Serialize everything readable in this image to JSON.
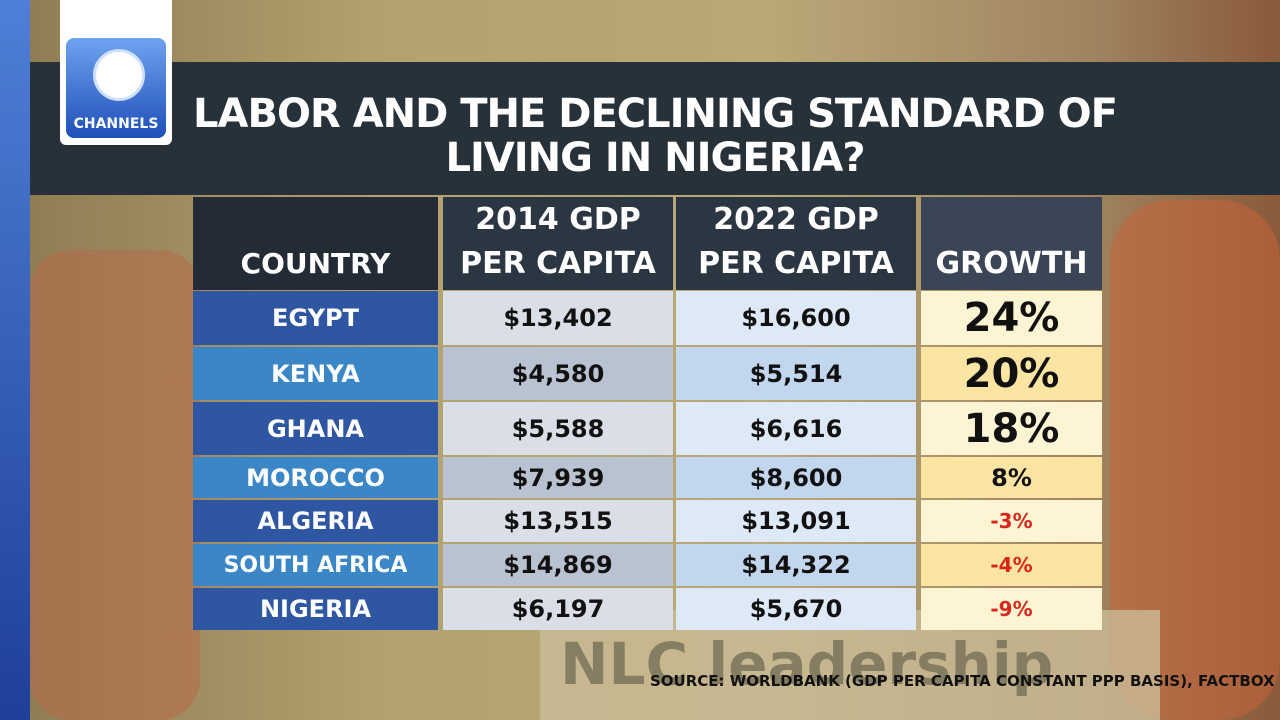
{
  "logo": "CHANNELS",
  "title": "LABOR AND THE DECLINING STANDARD OF LIVING IN NIGERIA?",
  "background_sign": "NLC leadership",
  "table": {
    "header": [
      "COUNTRY",
      "2014 GDP PER CAPITA",
      "2022 GDP PER CAPITA",
      "GROWTH"
    ],
    "rows": [
      [
        "EGYPT",
        "$13,402",
        "$16,600",
        "24%"
      ],
      [
        "KENYA",
        "$4,580",
        "$5,514",
        "20%"
      ],
      [
        "GHANA",
        "$5,588",
        "$6,616",
        "18%"
      ],
      [
        "MOROCCO",
        "$7,939",
        "$8,600",
        "8%"
      ],
      [
        "ALGERIA",
        "$13,515",
        "$13,091",
        "-3%"
      ],
      [
        "SOUTH AFRICA",
        "$14,869",
        "$14,322",
        "-4%"
      ],
      [
        "NIGERIA",
        "$6,197",
        "$5,670",
        "-9%"
      ]
    ]
  },
  "source": "SOURCE: WORLDBANK (GDP PER CAPITA CONSTANT PPP BASIS), FACTBOX"
}
